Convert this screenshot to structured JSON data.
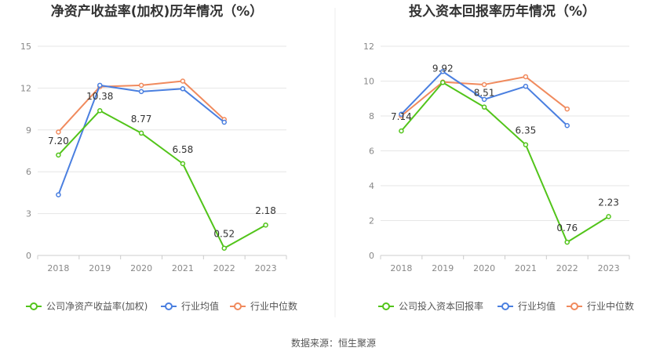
{
  "source_note": "数据来源：恒生聚源",
  "colors": {
    "company": "#52c41a",
    "average": "#4a7fe0",
    "median": "#f08a5d"
  },
  "chart_data": [
    {
      "type": "line",
      "title": "净资产收益率(加权)历年情况（%）",
      "x": [
        "2018",
        "2019",
        "2020",
        "2021",
        "2022",
        "2023"
      ],
      "ylim": [
        0,
        15
      ],
      "yticks": [
        "0",
        "3",
        "6",
        "9",
        "12",
        "15"
      ],
      "grid": true,
      "legend_placement": "bottom",
      "series": [
        {
          "name": "公司净资产收益率(加权)",
          "key": "company",
          "values": [
            7.2,
            10.38,
            8.77,
            6.58,
            0.52,
            2.18
          ],
          "labels": [
            "7.20",
            "10.38",
            "8.77",
            "6.58",
            "0.52",
            "2.18"
          ]
        },
        {
          "name": "行业均值",
          "key": "average",
          "values": [
            4.35,
            12.2,
            11.75,
            11.95,
            9.55,
            null
          ]
        },
        {
          "name": "行业中位数",
          "key": "median",
          "values": [
            8.85,
            12.1,
            12.2,
            12.5,
            9.75,
            null
          ]
        }
      ]
    },
    {
      "type": "line",
      "title": "投入资本回报率历年情况（%）",
      "x": [
        "2018",
        "2019",
        "2020",
        "2021",
        "2022",
        "2023"
      ],
      "ylim": [
        0,
        12
      ],
      "yticks": [
        "0",
        "2",
        "4",
        "6",
        "8",
        "10",
        "12"
      ],
      "grid": true,
      "legend_placement": "bottom",
      "series": [
        {
          "name": "公司投入资本回报率",
          "key": "company",
          "values": [
            7.14,
            9.92,
            8.51,
            6.35,
            0.76,
            2.23
          ],
          "labels": [
            "7.14",
            "9.92",
            "8.51",
            "6.35",
            "0.76",
            "2.23"
          ]
        },
        {
          "name": "行业均值",
          "key": "average",
          "values": [
            8.1,
            10.55,
            8.95,
            9.7,
            7.45,
            null
          ]
        },
        {
          "name": "行业中位数",
          "key": "median",
          "values": [
            8.0,
            9.95,
            9.8,
            10.25,
            8.4,
            null
          ]
        }
      ]
    }
  ]
}
